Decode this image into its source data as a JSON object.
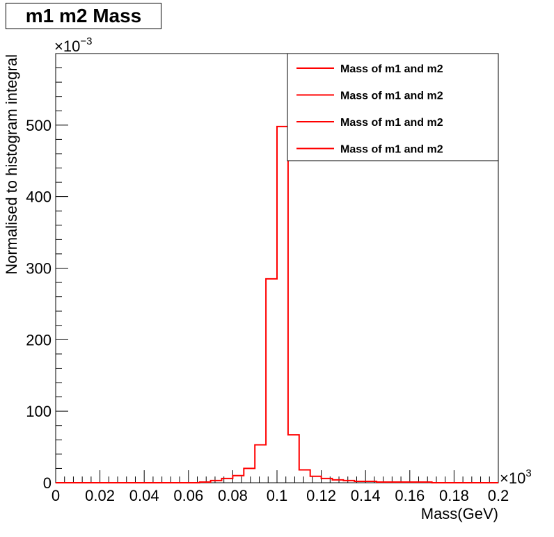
{
  "chart_data": {
    "type": "histogram",
    "title": "m1 m2 Mass",
    "xlabel": "Mass(GeV)",
    "ylabel": "Normalised to histogram integral",
    "x_multiplier": "×10",
    "x_multiplier_exp": "3",
    "y_multiplier": "×10",
    "y_multiplier_exp": "−3",
    "xlim": [
      0,
      0.2
    ],
    "ylim": [
      0,
      600
    ],
    "x_ticks": [
      0,
      0.02,
      0.04,
      0.06,
      0.08,
      0.1,
      0.12,
      0.14,
      0.16,
      0.18,
      0.2
    ],
    "x_tick_labels": [
      "0",
      "0.02",
      "0.04",
      "0.06",
      "0.08",
      "0.1",
      "0.12",
      "0.14",
      "0.16",
      "0.18",
      "0.2"
    ],
    "y_ticks": [
      0,
      100,
      200,
      300,
      400,
      500
    ],
    "y_tick_labels": [
      "0",
      "100",
      "200",
      "300",
      "400",
      "500"
    ],
    "bin_width": 0.005,
    "bin_edges_start": 0,
    "values": [
      0,
      0,
      0,
      0,
      0,
      0,
      0,
      0,
      0,
      0,
      0,
      0,
      0,
      1,
      3,
      6,
      10,
      20,
      53,
      285,
      498,
      67,
      18,
      9,
      6,
      4,
      3,
      2,
      2,
      1,
      1,
      1,
      1,
      1,
      0,
      0,
      0,
      0,
      0,
      0
    ],
    "line_color": "#ff0000",
    "legend": {
      "position": "top-right",
      "entries": [
        "Mass of m1 and m2",
        "Mass of m1 and m2",
        "Mass of m1 and m2",
        "Mass of m1 and m2"
      ]
    }
  }
}
